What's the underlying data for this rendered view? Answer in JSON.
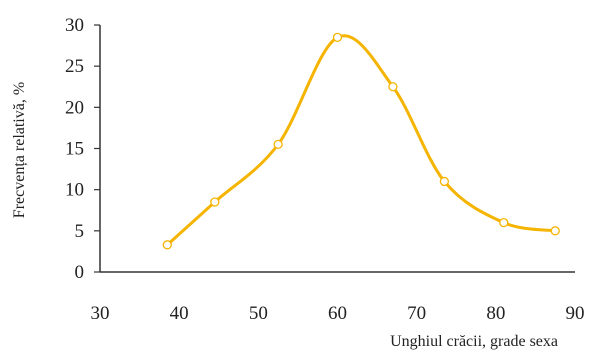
{
  "chart_data": {
    "type": "line",
    "title": "",
    "xlabel": "Unghiul crăcii, grade sexa",
    "ylabel": "Frecvența relativă, %",
    "xlim": [
      30,
      90
    ],
    "ylim": [
      0,
      30
    ],
    "x_ticks": [
      "30",
      "40",
      "50",
      "60",
      "70",
      "80",
      "90"
    ],
    "y_ticks": [
      "0",
      "5",
      "10",
      "15",
      "20",
      "25",
      "30"
    ],
    "grid": false,
    "legend": "none",
    "series": [
      {
        "color": "#F5B400",
        "marker": "open-circle",
        "x": [
          38.5,
          44.5,
          52.5,
          60,
          67,
          73.5,
          81,
          87.5
        ],
        "y": [
          3.3,
          8.5,
          15.5,
          28.5,
          22.5,
          11,
          6,
          5
        ]
      }
    ]
  }
}
